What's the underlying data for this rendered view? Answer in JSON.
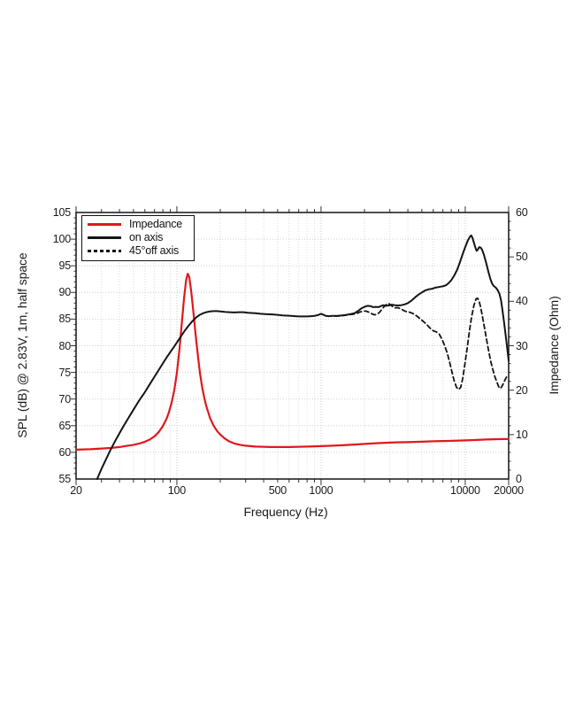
{
  "legend": {
    "items": [
      {
        "label": "Impedance",
        "color": "#e0181d",
        "style": "solid"
      },
      {
        "label": "on axis",
        "color": "#141414",
        "style": "solid"
      },
      {
        "label": "45°off axis",
        "color": "#141414",
        "style": "dashed"
      }
    ]
  },
  "chart_data": {
    "type": "line",
    "title": "",
    "xlabel": "Frequency (Hz)",
    "ylabel_left": "SPL (dB) @ 2.83V, 1m, half space",
    "ylabel_right": "Impedance (Ohm)",
    "x_scale": "log",
    "x_range": [
      20,
      20000
    ],
    "y_left_range": [
      55,
      105
    ],
    "y_right_range": [
      0,
      60
    ],
    "grid": "dotted",
    "legend_position": "top-left",
    "x_ticks": [
      20,
      100,
      500,
      1000,
      10000,
      20000
    ],
    "y_left_ticks": [
      55,
      60,
      65,
      70,
      75,
      80,
      85,
      90,
      95,
      100,
      105
    ],
    "y_right_ticks": [
      0,
      10,
      20,
      30,
      40,
      50,
      60
    ],
    "series": [
      {
        "name": "Impedance",
        "axis": "right",
        "unit": "Ohm",
        "color": "#e0181d",
        "style": "solid",
        "points": [
          [
            20,
            6.6
          ],
          [
            25,
            6.7
          ],
          [
            30,
            6.85
          ],
          [
            35,
            7.0
          ],
          [
            40,
            7.2
          ],
          [
            45,
            7.45
          ],
          [
            50,
            7.7
          ],
          [
            55,
            8.0
          ],
          [
            60,
            8.4
          ],
          [
            65,
            8.9
          ],
          [
            70,
            9.6
          ],
          [
            75,
            10.6
          ],
          [
            80,
            11.9
          ],
          [
            85,
            13.6
          ],
          [
            88,
            15.0
          ],
          [
            92,
            17.2
          ],
          [
            96,
            20.0
          ],
          [
            100,
            23.8
          ],
          [
            104,
            28.8
          ],
          [
            108,
            34.8
          ],
          [
            112,
            40.6
          ],
          [
            116,
            44.8
          ],
          [
            119,
            46.2
          ],
          [
            122,
            45.4
          ],
          [
            126,
            42.0
          ],
          [
            130,
            37.8
          ],
          [
            135,
            32.4
          ],
          [
            140,
            27.6
          ],
          [
            145,
            23.6
          ],
          [
            150,
            20.6
          ],
          [
            155,
            18.2
          ],
          [
            160,
            16.4
          ],
          [
            170,
            13.7
          ],
          [
            180,
            12.0
          ],
          [
            190,
            10.8
          ],
          [
            200,
            10.0
          ],
          [
            215,
            9.1
          ],
          [
            230,
            8.5
          ],
          [
            250,
            8.0
          ],
          [
            275,
            7.7
          ],
          [
            300,
            7.5
          ],
          [
            350,
            7.3
          ],
          [
            400,
            7.25
          ],
          [
            450,
            7.2
          ],
          [
            500,
            7.2
          ],
          [
            600,
            7.2
          ],
          [
            700,
            7.25
          ],
          [
            800,
            7.3
          ],
          [
            900,
            7.35
          ],
          [
            1000,
            7.4
          ],
          [
            1200,
            7.5
          ],
          [
            1400,
            7.6
          ],
          [
            1700,
            7.75
          ],
          [
            2000,
            7.9
          ],
          [
            2400,
            8.05
          ],
          [
            2800,
            8.15
          ],
          [
            3300,
            8.25
          ],
          [
            4000,
            8.3
          ],
          [
            5000,
            8.4
          ],
          [
            6000,
            8.5
          ],
          [
            7000,
            8.55
          ],
          [
            8000,
            8.6
          ],
          [
            9000,
            8.65
          ],
          [
            10000,
            8.7
          ],
          [
            12000,
            8.8
          ],
          [
            14000,
            8.9
          ],
          [
            16000,
            8.95
          ],
          [
            18000,
            9.0
          ],
          [
            20000,
            9.0
          ]
        ]
      },
      {
        "name": "on axis",
        "axis": "left",
        "unit": "dB",
        "color": "#141414",
        "style": "solid",
        "points": [
          [
            28,
            55.0
          ],
          [
            30,
            56.9
          ],
          [
            32,
            58.5
          ],
          [
            35,
            60.7
          ],
          [
            38,
            62.5
          ],
          [
            42,
            64.6
          ],
          [
            46,
            66.4
          ],
          [
            50,
            68.0
          ],
          [
            55,
            69.8
          ],
          [
            60,
            71.3
          ],
          [
            65,
            72.8
          ],
          [
            70,
            74.2
          ],
          [
            75,
            75.5
          ],
          [
            80,
            76.7
          ],
          [
            85,
            77.8
          ],
          [
            90,
            78.8
          ],
          [
            95,
            79.7
          ],
          [
            100,
            80.6
          ],
          [
            107,
            81.8
          ],
          [
            114,
            82.9
          ],
          [
            121,
            83.8
          ],
          [
            128,
            84.6
          ],
          [
            136,
            85.3
          ],
          [
            144,
            85.8
          ],
          [
            152,
            86.1
          ],
          [
            160,
            86.3
          ],
          [
            170,
            86.45
          ],
          [
            180,
            86.5
          ],
          [
            190,
            86.5
          ],
          [
            200,
            86.45
          ],
          [
            215,
            86.35
          ],
          [
            230,
            86.3
          ],
          [
            250,
            86.25
          ],
          [
            270,
            86.3
          ],
          [
            290,
            86.3
          ],
          [
            310,
            86.2
          ],
          [
            330,
            86.15
          ],
          [
            350,
            86.1
          ],
          [
            380,
            86.0
          ],
          [
            410,
            85.95
          ],
          [
            440,
            85.9
          ],
          [
            470,
            85.85
          ],
          [
            500,
            85.8
          ],
          [
            540,
            85.7
          ],
          [
            580,
            85.65
          ],
          [
            620,
            85.6
          ],
          [
            660,
            85.55
          ],
          [
            700,
            85.5
          ],
          [
            750,
            85.5
          ],
          [
            800,
            85.5
          ],
          [
            850,
            85.55
          ],
          [
            900,
            85.6
          ],
          [
            950,
            85.75
          ],
          [
            1000,
            86.0
          ],
          [
            1040,
            85.8
          ],
          [
            1080,
            85.6
          ],
          [
            1130,
            85.55
          ],
          [
            1200,
            85.6
          ],
          [
            1300,
            85.6
          ],
          [
            1400,
            85.7
          ],
          [
            1500,
            85.8
          ],
          [
            1600,
            85.95
          ],
          [
            1700,
            86.1
          ],
          [
            1800,
            86.5
          ],
          [
            1900,
            87.0
          ],
          [
            2000,
            87.3
          ],
          [
            2100,
            87.5
          ],
          [
            2200,
            87.45
          ],
          [
            2300,
            87.25
          ],
          [
            2400,
            87.3
          ],
          [
            2500,
            87.25
          ],
          [
            2600,
            87.45
          ],
          [
            2700,
            87.6
          ],
          [
            2800,
            87.5
          ],
          [
            2950,
            87.55
          ],
          [
            3100,
            87.7
          ],
          [
            3250,
            87.6
          ],
          [
            3400,
            87.55
          ],
          [
            3600,
            87.6
          ],
          [
            3800,
            87.75
          ],
          [
            4000,
            88.0
          ],
          [
            4250,
            88.5
          ],
          [
            4500,
            89.1
          ],
          [
            4750,
            89.6
          ],
          [
            5000,
            90.0
          ],
          [
            5300,
            90.4
          ],
          [
            5600,
            90.6
          ],
          [
            5900,
            90.7
          ],
          [
            6200,
            90.9
          ],
          [
            6500,
            91.0
          ],
          [
            6800,
            91.1
          ],
          [
            7100,
            91.2
          ],
          [
            7400,
            91.4
          ],
          [
            7700,
            91.8
          ],
          [
            8000,
            92.3
          ],
          [
            8400,
            93.2
          ],
          [
            8800,
            94.3
          ],
          [
            9200,
            95.7
          ],
          [
            9600,
            97.2
          ],
          [
            10000,
            98.5
          ],
          [
            10400,
            99.7
          ],
          [
            10800,
            100.5
          ],
          [
            11000,
            100.7
          ],
          [
            11200,
            100.3
          ],
          [
            11500,
            99.3
          ],
          [
            11800,
            98.3
          ],
          [
            12000,
            97.8
          ],
          [
            12200,
            98.0
          ],
          [
            12500,
            98.5
          ],
          [
            12800,
            98.4
          ],
          [
            13100,
            98.0
          ],
          [
            13500,
            97.0
          ],
          [
            14000,
            95.4
          ],
          [
            14500,
            93.8
          ],
          [
            15000,
            92.4
          ],
          [
            15400,
            91.6
          ],
          [
            15800,
            91.2
          ],
          [
            16300,
            90.9
          ],
          [
            16800,
            90.4
          ],
          [
            17300,
            89.7
          ],
          [
            17700,
            88.5
          ],
          [
            18100,
            86.8
          ],
          [
            18500,
            84.8
          ],
          [
            18900,
            82.8
          ],
          [
            19300,
            80.8
          ],
          [
            19600,
            79.2
          ],
          [
            19800,
            78.2
          ],
          [
            20000,
            77.2
          ]
        ]
      },
      {
        "name": "45°off axis",
        "axis": "left",
        "unit": "dB",
        "color": "#141414",
        "style": "dashed",
        "points": [
          [
            1250,
            85.55
          ],
          [
            1350,
            85.6
          ],
          [
            1450,
            85.7
          ],
          [
            1550,
            85.8
          ],
          [
            1650,
            85.9
          ],
          [
            1750,
            86.0
          ],
          [
            1850,
            86.3
          ],
          [
            1950,
            86.5
          ],
          [
            2050,
            86.5
          ],
          [
            2150,
            86.3
          ],
          [
            2250,
            86.0
          ],
          [
            2350,
            85.8
          ],
          [
            2450,
            85.9
          ],
          [
            2550,
            86.3
          ],
          [
            2650,
            86.9
          ],
          [
            2750,
            87.4
          ],
          [
            2850,
            87.8
          ],
          [
            2950,
            87.9
          ],
          [
            3050,
            87.6
          ],
          [
            3150,
            87.3
          ],
          [
            3250,
            87.1
          ],
          [
            3350,
            87.15
          ],
          [
            3450,
            87.1
          ],
          [
            3600,
            86.9
          ],
          [
            3750,
            86.6
          ],
          [
            3900,
            86.4
          ],
          [
            4100,
            86.3
          ],
          [
            4300,
            86.1
          ],
          [
            4500,
            85.8
          ],
          [
            4700,
            85.4
          ],
          [
            4900,
            85.0
          ],
          [
            5100,
            84.6
          ],
          [
            5400,
            84.0
          ],
          [
            5700,
            83.3
          ],
          [
            6000,
            82.8
          ],
          [
            6300,
            82.6
          ],
          [
            6600,
            82.2
          ],
          [
            6900,
            81.2
          ],
          [
            7200,
            80.0
          ],
          [
            7500,
            78.6
          ],
          [
            7800,
            76.9
          ],
          [
            8100,
            75.0
          ],
          [
            8400,
            73.3
          ],
          [
            8700,
            72.2
          ],
          [
            9000,
            71.8
          ],
          [
            9300,
            72.2
          ],
          [
            9600,
            73.8
          ],
          [
            9900,
            76.2
          ],
          [
            10300,
            79.4
          ],
          [
            10700,
            82.8
          ],
          [
            11100,
            85.6
          ],
          [
            11500,
            87.6
          ],
          [
            11900,
            88.8
          ],
          [
            12200,
            88.9
          ],
          [
            12500,
            88.3
          ],
          [
            12800,
            87.2
          ],
          [
            13100,
            85.8
          ],
          [
            13500,
            83.8
          ],
          [
            14000,
            81.4
          ],
          [
            14500,
            79.2
          ],
          [
            15000,
            77.2
          ],
          [
            15500,
            75.6
          ],
          [
            16000,
            74.3
          ],
          [
            16500,
            73.3
          ],
          [
            17000,
            72.4
          ],
          [
            17400,
            72.0
          ],
          [
            17800,
            72.2
          ],
          [
            18300,
            72.8
          ],
          [
            18800,
            73.5
          ],
          [
            19300,
            74.1
          ],
          [
            19700,
            74.4
          ],
          [
            20000,
            74.3
          ]
        ]
      }
    ]
  }
}
